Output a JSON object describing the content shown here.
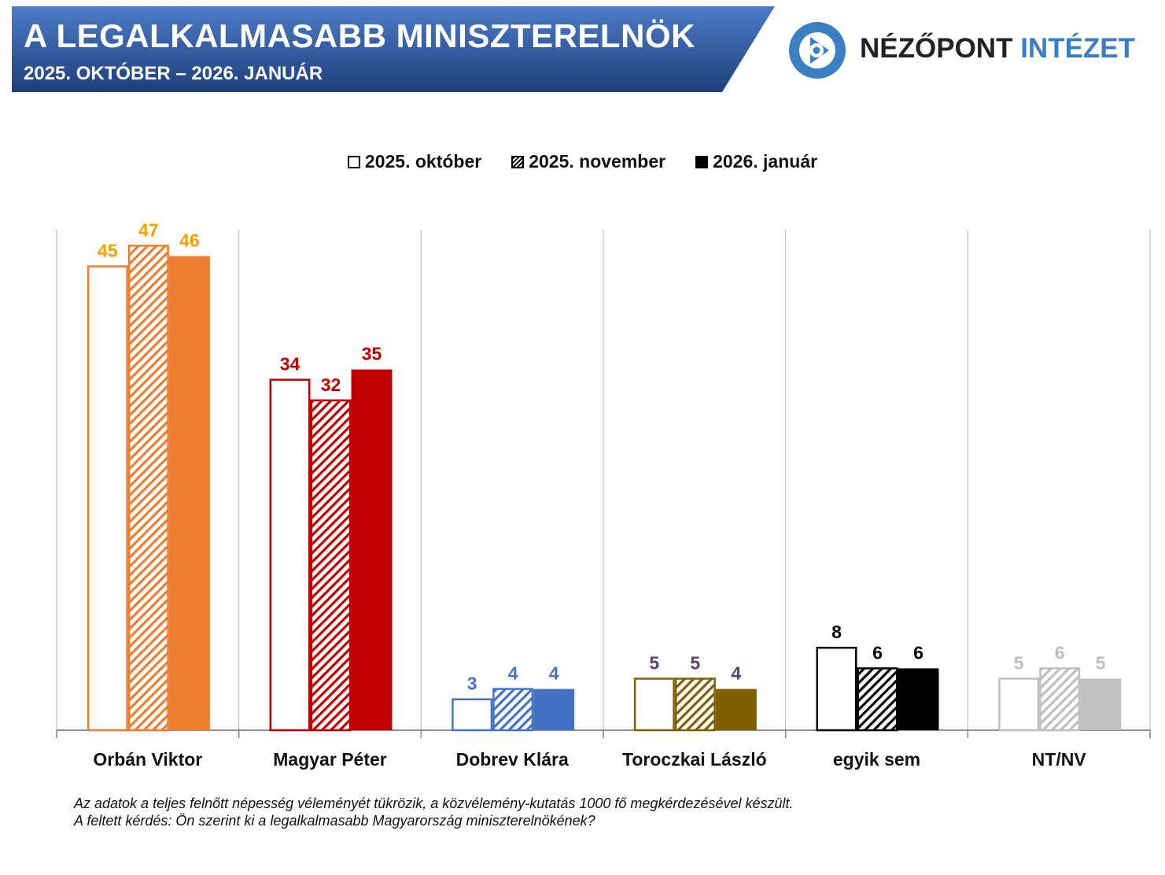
{
  "header": {
    "title": "A LEGALKALMASABB MINISZTERELNÖK",
    "subtitle": "2025. OKTÓBER – 2026. JANUÁR",
    "banner_color": "#2f5597",
    "logo_text_a": "NÉZŐPONT",
    "logo_text_b": "INTÉZET",
    "logo_color": "#3a7ec4"
  },
  "legend": [
    {
      "label": "2025. október",
      "style": "outline"
    },
    {
      "label": "2025. november",
      "style": "hatched"
    },
    {
      "label": "2026. január",
      "style": "filled"
    }
  ],
  "chart_data": {
    "type": "bar",
    "categories": [
      "Orbán Viktor",
      "Magyar Péter",
      "Dobrev Klára",
      "Toroczkai László",
      "egyik sem",
      "NT/NV"
    ],
    "category_colors": [
      "#ed7d31",
      "#c00000",
      "#4472c4",
      "#7f6000",
      "#000000",
      "#bfbfbf"
    ],
    "label_colors": [
      "#f5a000",
      "#c00000",
      "#4472c4",
      "#5a3f7a",
      "#000000",
      "#bfbfbf"
    ],
    "series": [
      {
        "name": "2025. október",
        "values": [
          45,
          34,
          3,
          5,
          8,
          5
        ]
      },
      {
        "name": "2025. november",
        "values": [
          47,
          32,
          4,
          5,
          6,
          6
        ]
      },
      {
        "name": "2026. január",
        "values": [
          46,
          35,
          4,
          4,
          6,
          5
        ]
      }
    ],
    "ylim": [
      0,
      48
    ],
    "grid": "vertical separators"
  },
  "footnote": [
    "Az adatok a teljes felnőtt népesség véleményét tükrözik, a közvélemény-kutatás 1000 fő megkérdezésével készült.",
    "A feltett kérdés: Ön szerint ki a legalkalmasabb Magyarország miniszterelnökének?"
  ]
}
